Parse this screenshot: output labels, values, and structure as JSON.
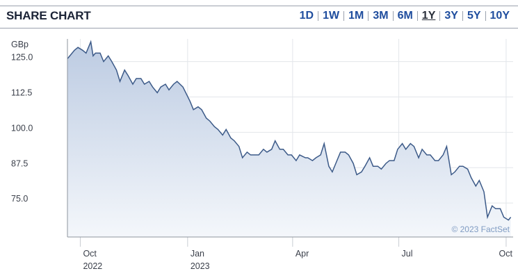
{
  "header": {
    "title": "SHARE CHART",
    "ranges": [
      "1D",
      "1W",
      "1M",
      "3M",
      "6M",
      "1Y",
      "3Y",
      "5Y",
      "10Y"
    ],
    "active_range": "1Y"
  },
  "colors": {
    "line": "#3c5a88",
    "fill_top": "#bccbe2",
    "fill_bottom": "#f4f7fb",
    "link": "#1f4d9e"
  },
  "chart_data": {
    "type": "area",
    "ylabel": "GBp",
    "y_ticks": [
      "125.0",
      "112.5",
      "100.0",
      "87.5",
      "75.0"
    ],
    "ylim": [
      63,
      133
    ],
    "x_ticks": [
      {
        "label": "Oct",
        "sub": "2022",
        "date": "2022-10-01"
      },
      {
        "label": "Jan",
        "sub": "2023",
        "date": "2023-01-01"
      },
      {
        "label": "Apr",
        "sub": "",
        "date": "2023-04-01"
      },
      {
        "label": "Jul",
        "sub": "",
        "date": "2023-07-01"
      },
      {
        "label": "Oct",
        "sub": "",
        "date": "2023-10-01"
      }
    ],
    "xlim": [
      "2022-09-20",
      "2023-10-07"
    ],
    "grid": true,
    "credit": "© 2023 FactSet",
    "series": [
      {
        "x": [
          "2022-09-20",
          "2022-09-22",
          "2022-09-26",
          "2022-09-29",
          "2022-10-03",
          "2022-10-06",
          "2022-10-10",
          "2022-10-12",
          "2022-10-14",
          "2022-10-18",
          "2022-10-21",
          "2022-10-25",
          "2022-10-28",
          "2022-11-01",
          "2022-11-04",
          "2022-11-08",
          "2022-11-11",
          "2022-11-15",
          "2022-11-18",
          "2022-11-22",
          "2022-11-25",
          "2022-11-29",
          "2022-12-02",
          "2022-12-06",
          "2022-12-09",
          "2022-12-13",
          "2022-12-16",
          "2022-12-20",
          "2022-12-23",
          "2022-12-28",
          "2023-01-03",
          "2023-01-06",
          "2023-01-10",
          "2023-01-13",
          "2023-01-17",
          "2023-01-20",
          "2023-01-24",
          "2023-01-27",
          "2023-01-31",
          "2023-02-03",
          "2023-02-07",
          "2023-02-10",
          "2023-02-14",
          "2023-02-17",
          "2023-02-21",
          "2023-02-24",
          "2023-02-28",
          "2023-03-03",
          "2023-03-07",
          "2023-03-10",
          "2023-03-14",
          "2023-03-17",
          "2023-03-21",
          "2023-03-24",
          "2023-03-28",
          "2023-03-31",
          "2023-04-04",
          "2023-04-07",
          "2023-04-12",
          "2023-04-14",
          "2023-04-18",
          "2023-04-21",
          "2023-04-25",
          "2023-04-28",
          "2023-05-02",
          "2023-05-05",
          "2023-05-09",
          "2023-05-12",
          "2023-05-16",
          "2023-05-19",
          "2023-05-23",
          "2023-05-26",
          "2023-05-30",
          "2023-06-02",
          "2023-06-06",
          "2023-06-09",
          "2023-06-13",
          "2023-06-16",
          "2023-06-20",
          "2023-06-23",
          "2023-06-27",
          "2023-06-30",
          "2023-07-04",
          "2023-07-07",
          "2023-07-11",
          "2023-07-14",
          "2023-07-18",
          "2023-07-21",
          "2023-07-25",
          "2023-07-28",
          "2023-08-01",
          "2023-08-04",
          "2023-08-08",
          "2023-08-11",
          "2023-08-15",
          "2023-08-18",
          "2023-08-22",
          "2023-08-25",
          "2023-08-29",
          "2023-09-01",
          "2023-09-05",
          "2023-09-08",
          "2023-09-12",
          "2023-09-15",
          "2023-09-19",
          "2023-09-22",
          "2023-09-26",
          "2023-09-29",
          "2023-10-03",
          "2023-10-05"
        ],
        "values": [
          126,
          127,
          129,
          130,
          129,
          128,
          132,
          127,
          128,
          128,
          125,
          127,
          125,
          122,
          118,
          122,
          120,
          117,
          119,
          119,
          117,
          118,
          116,
          114,
          116,
          117,
          115,
          117,
          118,
          116,
          111,
          108,
          109,
          108,
          105,
          104,
          102,
          101,
          99,
          101,
          98,
          97,
          95,
          91,
          93,
          92,
          92,
          92,
          94,
          93,
          94,
          97,
          94,
          94,
          92,
          92,
          90,
          92,
          91,
          91,
          90,
          91,
          92,
          96,
          88,
          86,
          90,
          93,
          93,
          92,
          89,
          85,
          86,
          88,
          91,
          88,
          88,
          87,
          89,
          90,
          90,
          94,
          96,
          94,
          96,
          95,
          91,
          94,
          92,
          92,
          90,
          90,
          92,
          95,
          85,
          86,
          88,
          88,
          87,
          84,
          81,
          83,
          79,
          70,
          74,
          73,
          73,
          70,
          69,
          70
        ]
      }
    ]
  }
}
